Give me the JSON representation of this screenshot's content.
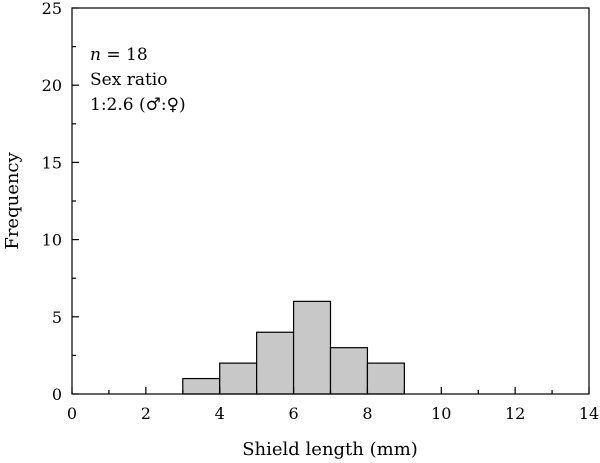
{
  "chart_data": {
    "type": "bar",
    "subtype": "histogram",
    "xlabel": "Shield length (mm)",
    "ylabel": "Frequency",
    "xlim": [
      0,
      14
    ],
    "ylim": [
      0,
      25
    ],
    "xticks": [
      0,
      2,
      4,
      6,
      8,
      10,
      12,
      14
    ],
    "yticks": [
      0,
      5,
      10,
      15,
      20,
      25
    ],
    "bins": [
      {
        "start": 3,
        "end": 4,
        "value": 1
      },
      {
        "start": 4,
        "end": 5,
        "value": 2
      },
      {
        "start": 5,
        "end": 6,
        "value": 4
      },
      {
        "start": 6,
        "end": 7,
        "value": 6
      },
      {
        "start": 7,
        "end": 8,
        "value": 3
      },
      {
        "start": 8,
        "end": 9,
        "value": 2
      }
    ],
    "bar_color": "#c8c8c8",
    "annotation": {
      "n_label": "n",
      "n_value": " = 18",
      "line2": "Sex ratio",
      "line3": "1:2.6 (♂:♀)"
    },
    "grid": false,
    "legend": "none"
  }
}
